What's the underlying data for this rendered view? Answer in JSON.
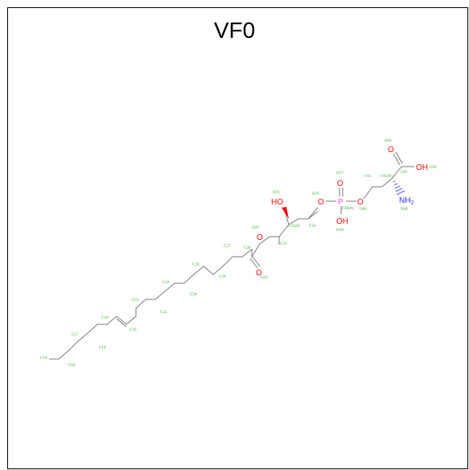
{
  "title": "VF0",
  "colors": {
    "bond": "#7a7a7a",
    "oxygen": "#ff0d0d",
    "phosphorus": "#ff4ff0",
    "nitrogen": "#2f2fff",
    "atom_label": "#3aa83a",
    "frame": "#000000"
  },
  "atoms": {
    "ho_left": "HO",
    "o_ester": "O",
    "o_carbonyl": "O",
    "o_p1": "O",
    "o_p_double": "O",
    "p": "P",
    "oh_p": "OH",
    "o_p2": "O",
    "o_acid_double": "O",
    "oh_acid": "OH",
    "nh2": "NH",
    "nh2_sub": "2"
  },
  "atom_labels": {
    "o7": "O31",
    "o_carbonyl_lbl": "O30",
    "o_ester_lbl": "O29",
    "c1": "C27",
    "c2": "C26",
    "c3": "C28",
    "c4": "C25",
    "c5": "C24",
    "c6": "C23",
    "c7": "C22",
    "c8": "C21",
    "c9": "C20",
    "c10": "C19",
    "c11": "C18",
    "c12": "C17",
    "c13": "C16",
    "c14": "C15",
    "c_end": "C14",
    "c_glyc1": "C31",
    "c_glyc2": "C32",
    "c_glyc2b": "C33(R)",
    "c_glyc3": "C34",
    "o_glyc": "O35",
    "o_p1_lbl": "O36",
    "o_p_double_lbl": "O37",
    "p_lbl": "P38(R)",
    "oh_p_lbl": "O39",
    "o_p2_lbl": "O40",
    "c_ser1": "C41",
    "c_ser2": "C42(R)",
    "c_ser3": "C43",
    "o_acid_lbl": "O44",
    "oh_acid_lbl": "O45",
    "n_lbl": "N46"
  }
}
